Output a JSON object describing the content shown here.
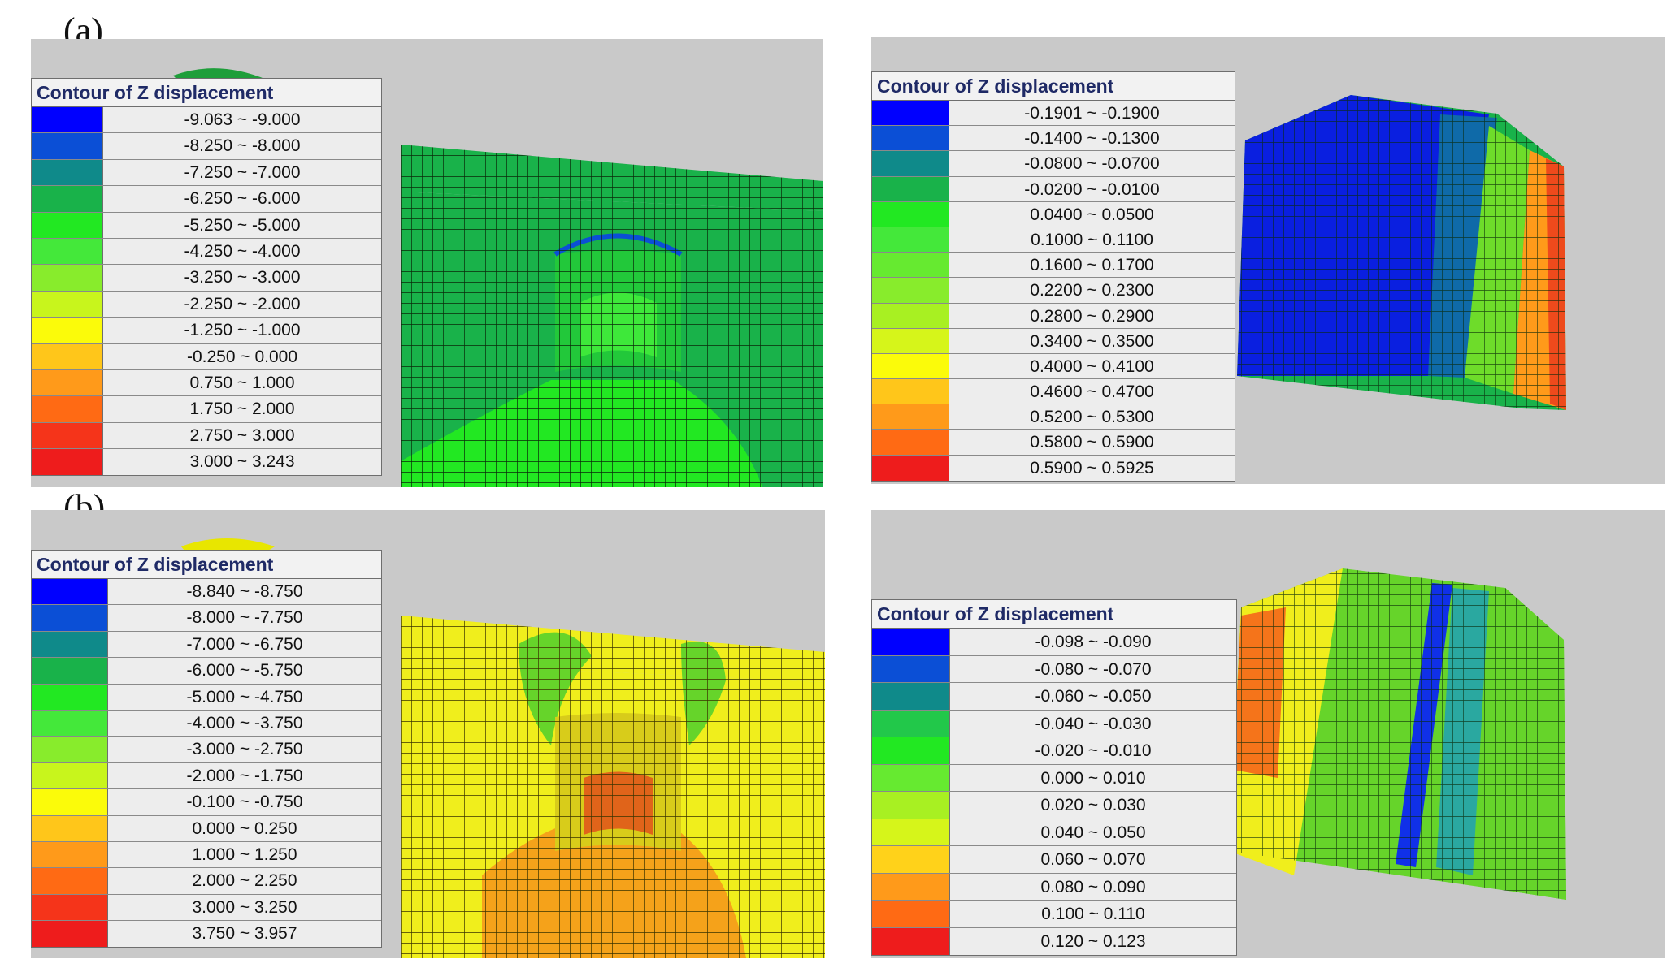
{
  "figure_labels": {
    "a": "(a)",
    "b": "(b)"
  },
  "legends": {
    "a_left": {
      "title": "Contour of  Z displacement",
      "rows": [
        {
          "color": "#0000ff",
          "range": "-9.063 ~ -9.000"
        },
        {
          "color": "#0b4fd6",
          "range": "-8.250 ~ -8.000"
        },
        {
          "color": "#0f8a8a",
          "range": "-7.250 ~ -7.000"
        },
        {
          "color": "#19b24a",
          "range": "-6.250 ~ -6.000"
        },
        {
          "color": "#22e822",
          "range": "-5.250 ~ -5.000"
        },
        {
          "color": "#44e83a",
          "range": "-4.250 ~ -4.000"
        },
        {
          "color": "#88ec2c",
          "range": "-3.250 ~ -3.000"
        },
        {
          "color": "#c8f51c",
          "range": "-2.250 ~ -2.000"
        },
        {
          "color": "#fbfb0a",
          "range": "-1.250 ~ -1.000"
        },
        {
          "color": "#ffc61a",
          "range": "-0.250 ~ 0.000"
        },
        {
          "color": "#ff9a1a",
          "range": "0.750 ~ 1.000"
        },
        {
          "color": "#ff6a14",
          "range": "1.750 ~ 2.000"
        },
        {
          "color": "#f5341a",
          "range": "2.750 ~ 3.000"
        },
        {
          "color": "#ee1c1c",
          "range": "3.000 ~ 3.243"
        }
      ]
    },
    "a_right": {
      "title": "Contour of  Z displacement",
      "rows": [
        {
          "color": "#0000ff",
          "range": "-0.1901 ~ -0.1900"
        },
        {
          "color": "#0b4fd6",
          "range": "-0.1400 ~ -0.1300"
        },
        {
          "color": "#0f8a8a",
          "range": "-0.0800 ~ -0.0700"
        },
        {
          "color": "#19b24a",
          "range": "-0.0200 ~ -0.0100"
        },
        {
          "color": "#22e822",
          "range": "0.0400 ~ 0.0500"
        },
        {
          "color": "#44e83a",
          "range": "0.1000 ~ 0.1100"
        },
        {
          "color": "#66ea30",
          "range": "0.1600 ~ 0.1700"
        },
        {
          "color": "#88ec2c",
          "range": "0.2200 ~ 0.2300"
        },
        {
          "color": "#a8f022",
          "range": "0.2800 ~ 0.2900"
        },
        {
          "color": "#d6f51a",
          "range": "0.3400 ~ 0.3500"
        },
        {
          "color": "#fbfb0a",
          "range": "0.4000 ~ 0.4100"
        },
        {
          "color": "#ffc61a",
          "range": "0.4600 ~ 0.4700"
        },
        {
          "color": "#ff9a1a",
          "range": "0.5200 ~ 0.5300"
        },
        {
          "color": "#ff6a14",
          "range": "0.5800 ~ 0.5900"
        },
        {
          "color": "#ee1c1c",
          "range": "0.5900 ~ 0.5925"
        }
      ]
    },
    "b_left": {
      "title": "Contour of  Z displacement",
      "rows": [
        {
          "color": "#0000ff",
          "range": "-8.840 ~ -8.750"
        },
        {
          "color": "#0b4fd6",
          "range": "-8.000 ~ -7.750"
        },
        {
          "color": "#0f8a8a",
          "range": "-7.000 ~ -6.750"
        },
        {
          "color": "#19b24a",
          "range": "-6.000 ~ -5.750"
        },
        {
          "color": "#22e822",
          "range": "-5.000 ~ -4.750"
        },
        {
          "color": "#44e83a",
          "range": "-4.000 ~ -3.750"
        },
        {
          "color": "#88ec2c",
          "range": "-3.000 ~ -2.750"
        },
        {
          "color": "#c8f51c",
          "range": "-2.000 ~ -1.750"
        },
        {
          "color": "#fbfb0a",
          "range": "-0.100 ~ -0.750"
        },
        {
          "color": "#ffc61a",
          "range": "0.000 ~ 0.250"
        },
        {
          "color": "#ff9a1a",
          "range": "1.000 ~ 1.250"
        },
        {
          "color": "#ff6a14",
          "range": "2.000 ~ 2.250"
        },
        {
          "color": "#f5341a",
          "range": "3.000 ~ 3.250"
        },
        {
          "color": "#ee1c1c",
          "range": "3.750 ~ 3.957"
        }
      ]
    },
    "b_right": {
      "title": "Contour of  Z displacement",
      "rows": [
        {
          "color": "#0000ff",
          "range": "-0.098 ~ -0.090"
        },
        {
          "color": "#0b4fd6",
          "range": "-0.080 ~ -0.070"
        },
        {
          "color": "#0f8a8a",
          "range": "-0.060 ~ -0.050"
        },
        {
          "color": "#22c84a",
          "range": "-0.040 ~ -0.030"
        },
        {
          "color": "#22e822",
          "range": "-0.020 ~ -0.010"
        },
        {
          "color": "#66ea30",
          "range": "0.000 ~ 0.010"
        },
        {
          "color": "#a8f022",
          "range": "0.020 ~ 0.030"
        },
        {
          "color": "#d6f51a",
          "range": "0.040 ~ 0.050"
        },
        {
          "color": "#ffd21a",
          "range": "0.060 ~ 0.070"
        },
        {
          "color": "#ff9a1a",
          "range": "0.080 ~ 0.090"
        },
        {
          "color": "#ff6a14",
          "range": "0.100 ~ 0.110"
        },
        {
          "color": "#ee1c1c",
          "range": "0.120 ~ 0.123"
        }
      ]
    }
  }
}
